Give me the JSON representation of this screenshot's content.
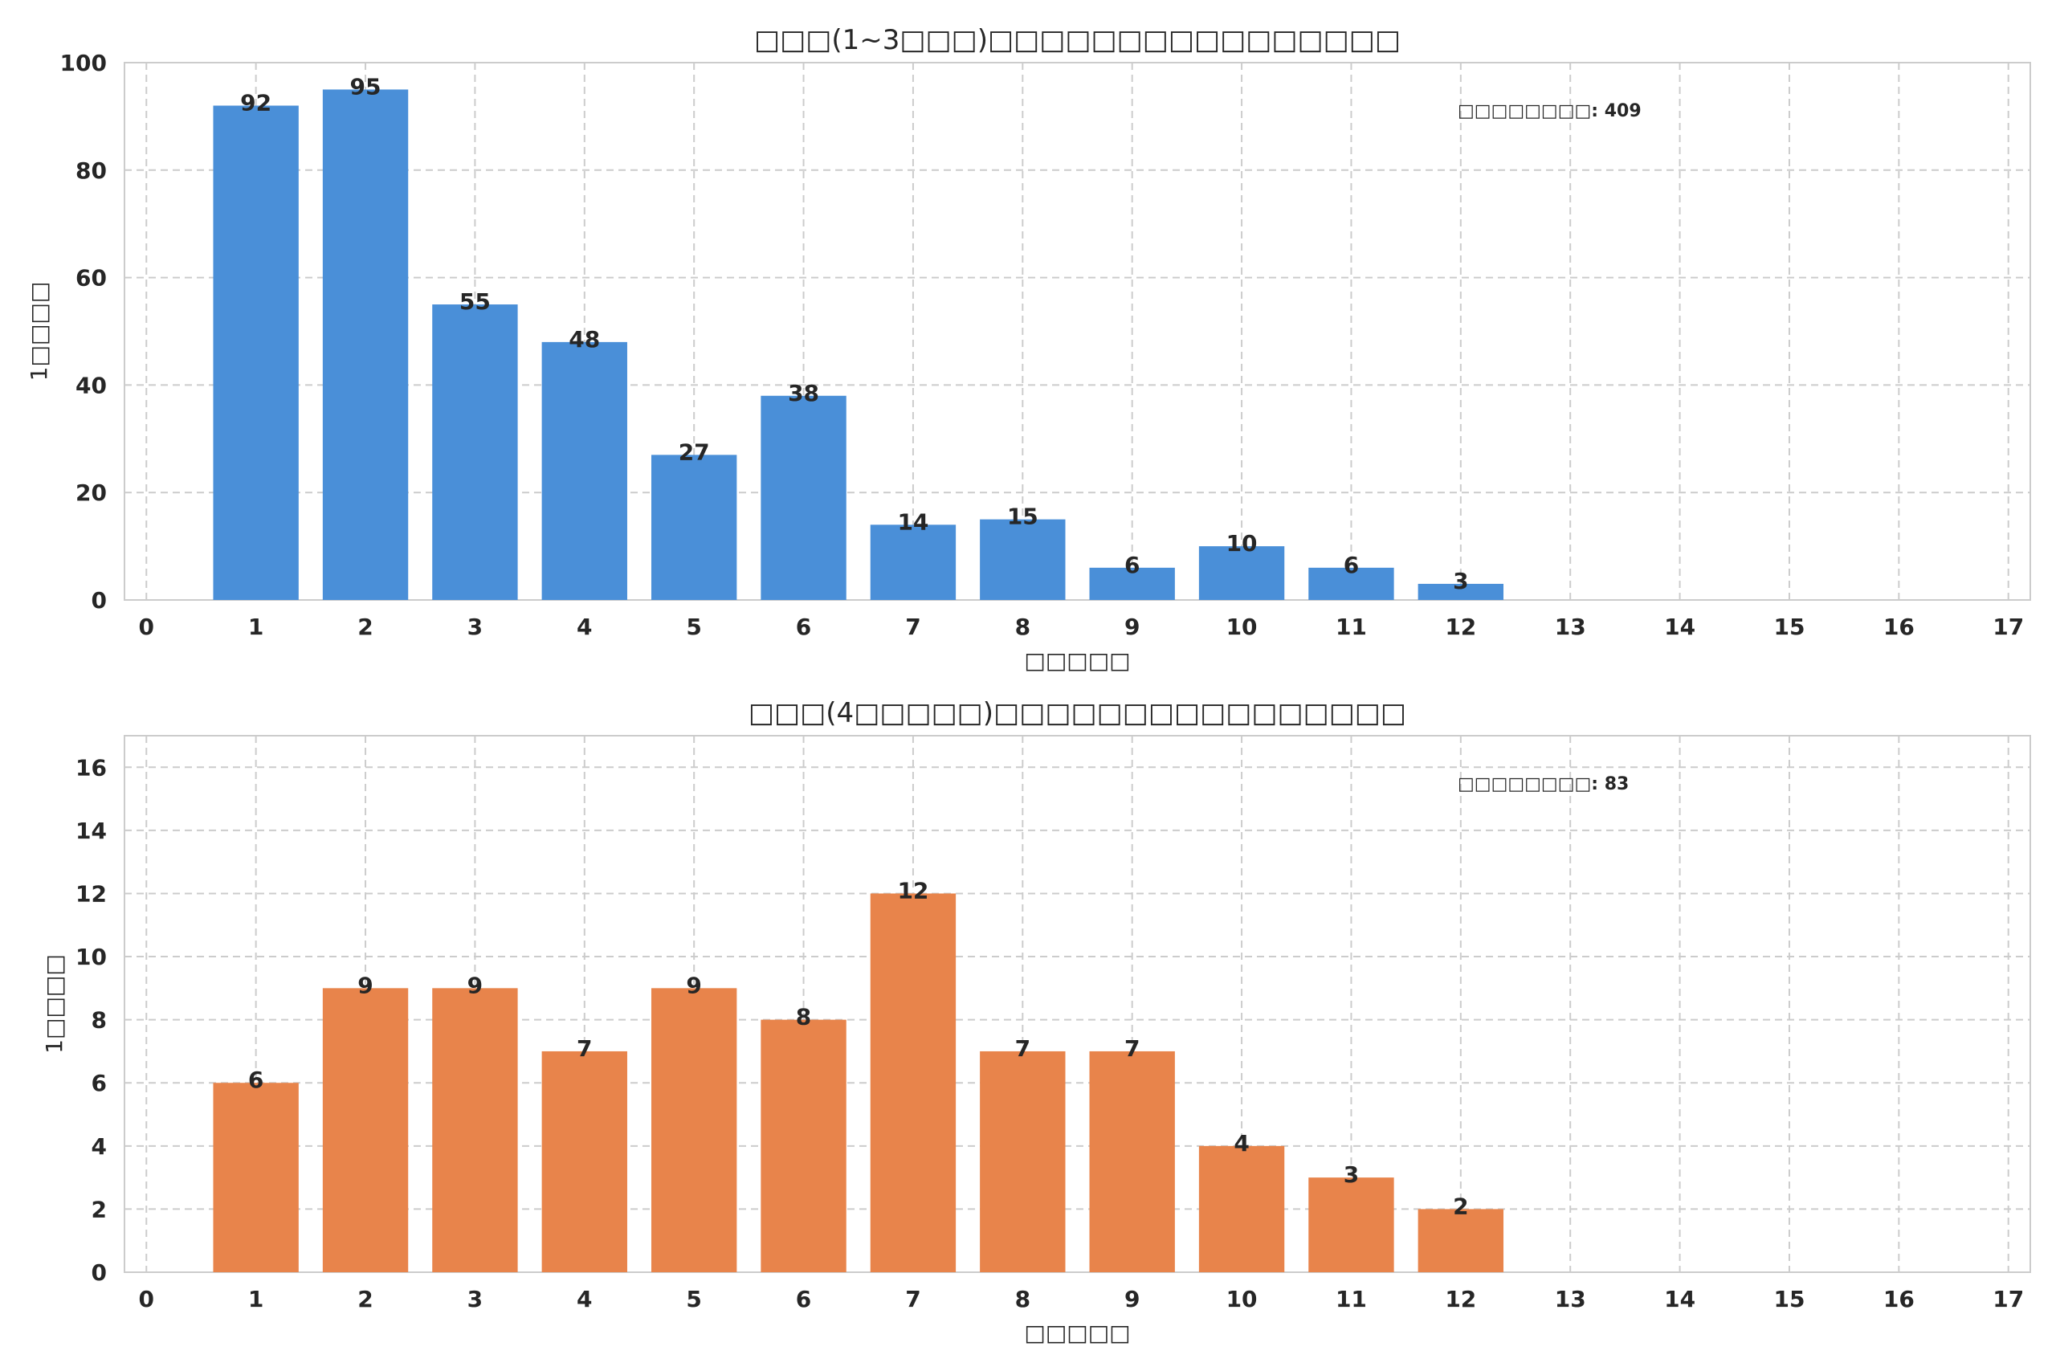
{
  "chart_data": [
    {
      "type": "bar",
      "title": "□□□(1~3□□□)□□□□□□□□□□□□□□□□",
      "xlabel": "□□□□□",
      "ylabel": "1□□□□",
      "categories": [
        1,
        2,
        3,
        4,
        5,
        6,
        7,
        8,
        9,
        10,
        11,
        12
      ],
      "values": [
        92,
        95,
        55,
        48,
        27,
        38,
        14,
        15,
        6,
        10,
        6,
        3
      ],
      "xticks": [
        0,
        1,
        2,
        3,
        4,
        5,
        6,
        7,
        8,
        9,
        10,
        11,
        12,
        13,
        14,
        15,
        16,
        17
      ],
      "yticks": [
        0,
        20,
        40,
        60,
        80,
        100
      ],
      "xlim": [
        -0.2,
        17.2
      ],
      "ylim": [
        0,
        100
      ],
      "grid": true,
      "color": "#4a8fd8",
      "annotation": "□□□□□□□□: 409"
    },
    {
      "type": "bar",
      "title": "□□□(4□□□□□)□□□□□□□□□□□□□□□□",
      "xlabel": "□□□□□",
      "ylabel": "1□□□□",
      "categories": [
        1,
        2,
        3,
        4,
        5,
        6,
        7,
        8,
        9,
        10,
        11,
        12
      ],
      "values": [
        6,
        9,
        9,
        7,
        9,
        8,
        12,
        7,
        7,
        4,
        3,
        2
      ],
      "xticks": [
        0,
        1,
        2,
        3,
        4,
        5,
        6,
        7,
        8,
        9,
        10,
        11,
        12,
        13,
        14,
        15,
        16,
        17
      ],
      "yticks": [
        0,
        2,
        4,
        6,
        8,
        10,
        12,
        14,
        16
      ],
      "xlim": [
        -0.2,
        17.2
      ],
      "ylim": [
        0,
        17
      ],
      "grid": true,
      "color": "#e8844b",
      "annotation": "□□□□□□□□: 83"
    }
  ]
}
